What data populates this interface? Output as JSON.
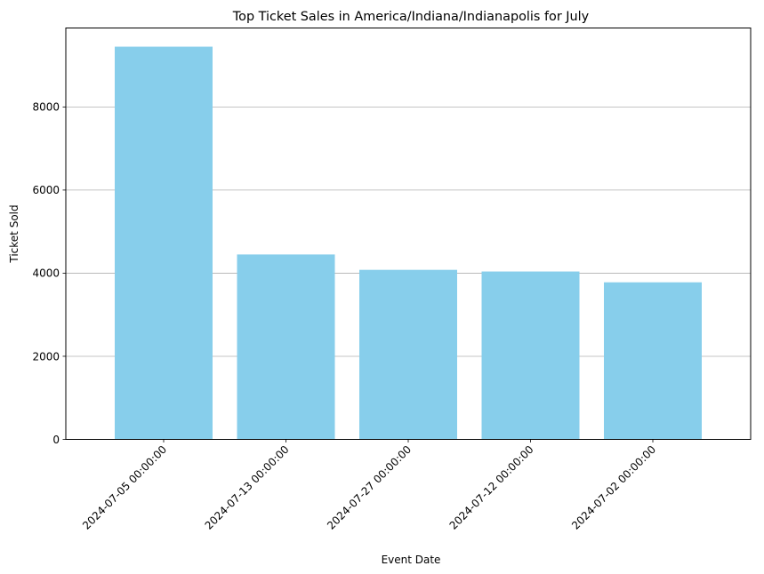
{
  "chart_data": {
    "type": "bar",
    "title": "Top Ticket Sales in America/Indiana/Indianapolis for July",
    "xlabel": "Event Date",
    "ylabel": "Ticket Sold",
    "categories": [
      "2024-07-05 00:00:00",
      "2024-07-13 00:00:00",
      "2024-07-27 00:00:00",
      "2024-07-12 00:00:00",
      "2024-07-02 00:00:00"
    ],
    "values": [
      9450,
      4450,
      4080,
      4040,
      3780
    ],
    "ylim": [
      0,
      9900
    ],
    "yticks": [
      0,
      2000,
      4000,
      6000,
      8000
    ],
    "grid": "y",
    "legend": "none",
    "bar_color": "#87ceeb",
    "grid_color": "#b0b0b0"
  }
}
